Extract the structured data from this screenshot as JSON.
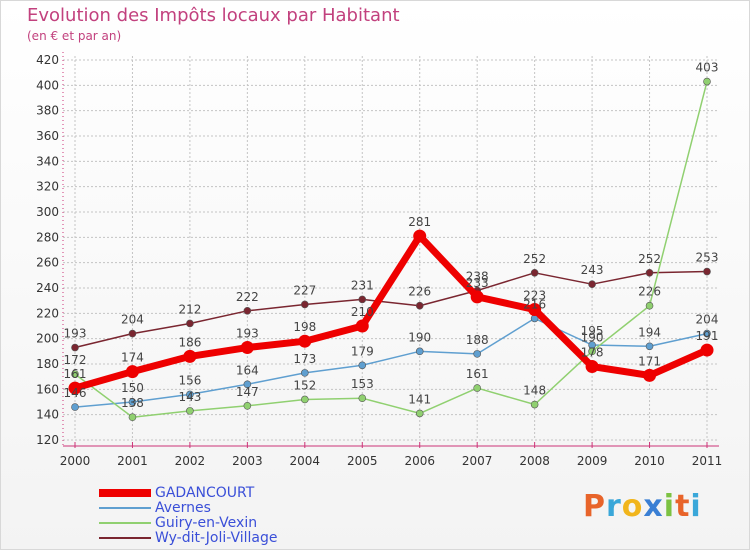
{
  "chart_data": {
    "type": "line",
    "title": "Evolution des Impôts locaux par Habitant",
    "subtitle": "(en € et par an)",
    "xlabel": "",
    "ylabel": "",
    "categories": [
      "2000",
      "2001",
      "2002",
      "2003",
      "2004",
      "2005",
      "2006",
      "2007",
      "2008",
      "2009",
      "2010",
      "2011"
    ],
    "ylim": [
      120,
      420
    ],
    "yticks": [
      120,
      140,
      160,
      180,
      200,
      220,
      240,
      260,
      280,
      300,
      320,
      340,
      360,
      380,
      400,
      420
    ],
    "grid": true,
    "series": [
      {
        "name": "GADANCOURT",
        "color": "#ee0000",
        "values": [
          161,
          174,
          186,
          193,
          198,
          210,
          281,
          233,
          223,
          178,
          171,
          191
        ]
      },
      {
        "name": "Avernes",
        "color": "#5f9fd0",
        "values": [
          146,
          150,
          156,
          164,
          173,
          179,
          190,
          188,
          216,
          195,
          194,
          204
        ]
      },
      {
        "name": "Guiry-en-Vexin",
        "color": "#90d070",
        "values": [
          172,
          138,
          143,
          147,
          152,
          153,
          141,
          161,
          148,
          190,
          226,
          403
        ]
      },
      {
        "name": "Wy-dit-Joli-Village",
        "color": "#7a2630",
        "values": [
          193,
          204,
          212,
          222,
          227,
          231,
          226,
          238,
          252,
          243,
          252,
          253
        ]
      }
    ]
  },
  "logo": {
    "letters": [
      "P",
      "r",
      "o",
      "x",
      "i",
      "t",
      "i"
    ]
  }
}
